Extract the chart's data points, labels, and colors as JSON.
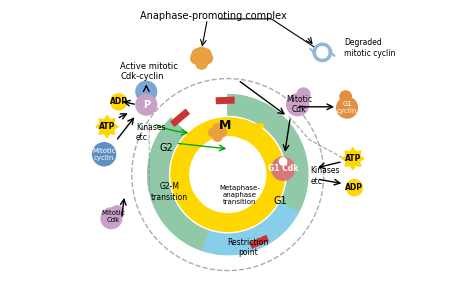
{
  "bg_color": "#ffffff",
  "colors": {
    "M_yellow": "#FFD700",
    "G1_teal": "#90C8A8",
    "G2_teal": "#90C8A8",
    "S_blue": "#87CEEB",
    "blue_circle": "#7BA7D4",
    "purple_circle": "#C8A0C8",
    "orange_blob": "#E8A040",
    "pink_cdk": "#D87878",
    "yellow_atp": "#FFD700",
    "blue_mitotic": "#6090C0",
    "g1_cyclin_orange": "#E09040",
    "degraded_blue": "#90B8D8",
    "red_bar": "#CC3333",
    "green_arrow": "#00AA00",
    "dashed_gray": "#888888"
  },
  "labels": {
    "anaphase_complex": "Anaphase-promoting complex",
    "degraded": "Degraded\nmitotic cyclin",
    "active_mitotic": "Active mitotic\nCdk-cyclin",
    "mitotic_cdk_right": "Mitotic\nCdk",
    "g1_cyclin": "G1\ncyclin",
    "mitotic_cyclin_left": "Mitotic\ncyclin",
    "mitotic_cdk_left": "Mitotic\nCdk",
    "g2_m": "G2-M\ntransition",
    "metaphase": "Metaphase-\nanaphase\ntransition",
    "restriction": "Restriction\npoint",
    "kinases_left": "Kinases\netc.",
    "kinases_right": "Kinases\netc.",
    "M_label": "M",
    "G2_label": "G2",
    "G1_label": "G1",
    "P_label": "P",
    "ADP_left": "ADP",
    "ATP_left": "ATP",
    "ADP_right": "ADP",
    "ATP_right": "ATP",
    "G1Cdk": "G1 Cdk"
  }
}
